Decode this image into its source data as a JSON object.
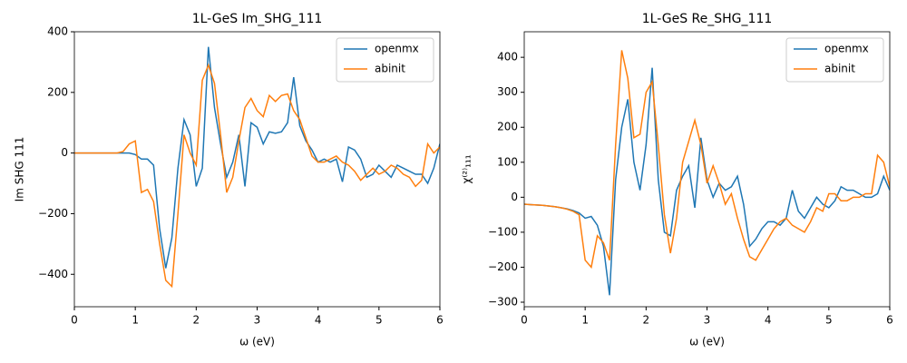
{
  "chart_data": [
    {
      "type": "line",
      "title": "1L-GeS Im_SHG_111",
      "xlabel": "ω (eV)",
      "ylabel": "Im SHG 111",
      "x": [
        0,
        0.1,
        0.2,
        0.3,
        0.4,
        0.5,
        0.6,
        0.7,
        0.8,
        0.9,
        1,
        1.1,
        1.2,
        1.3,
        1.4,
        1.5,
        1.6,
        1.7,
        1.8,
        1.9,
        2,
        2.1,
        2.2,
        2.3,
        2.4,
        2.5,
        2.6,
        2.7,
        2.8,
        2.9,
        3,
        3.1,
        3.2,
        3.3,
        3.4,
        3.5,
        3.6,
        3.7,
        3.8,
        3.9,
        4,
        4.1,
        4.2,
        4.3,
        4.4,
        4.5,
        4.6,
        4.7,
        4.8,
        4.9,
        5,
        5.1,
        5.2,
        5.3,
        5.4,
        5.5,
        5.6,
        5.7,
        5.8,
        5.9,
        6
      ],
      "series": [
        {
          "name": "openmx",
          "color": "#1f77b4",
          "values": [
            0,
            0,
            0,
            0,
            0,
            0,
            0,
            0,
            0,
            0,
            -5,
            -20,
            -20,
            -40,
            -250,
            -380,
            -280,
            -50,
            110,
            60,
            -110,
            -50,
            350,
            150,
            30,
            -80,
            -30,
            60,
            -110,
            100,
            85,
            30,
            70,
            65,
            70,
            100,
            250,
            90,
            40,
            10,
            -30,
            -20,
            -30,
            -20,
            -95,
            20,
            10,
            -20,
            -80,
            -70,
            -40,
            -60,
            -80,
            -40,
            -50,
            -60,
            -70,
            -70,
            -100,
            -50,
            30
          ]
        },
        {
          "name": "abinit",
          "color": "#ff7f0e",
          "values": [
            0,
            0,
            0,
            0,
            0,
            0,
            0,
            0,
            5,
            30,
            40,
            -130,
            -120,
            -160,
            -300,
            -420,
            -440,
            -200,
            60,
            0,
            -40,
            240,
            290,
            230,
            60,
            -130,
            -80,
            40,
            150,
            180,
            140,
            120,
            190,
            170,
            190,
            195,
            140,
            110,
            50,
            -10,
            -30,
            -30,
            -20,
            -10,
            -30,
            -40,
            -60,
            -90,
            -70,
            -50,
            -70,
            -60,
            -40,
            -50,
            -70,
            -80,
            -110,
            -90,
            30,
            0,
            20
          ]
        }
      ],
      "xlim": [
        0,
        6
      ],
      "xticks": [
        0,
        1,
        2,
        3,
        4,
        5,
        6
      ],
      "ylim": [
        -507,
        400
      ],
      "yticks": [
        {
          "value": -400,
          "label": "−400"
        },
        {
          "value": -200,
          "label": "−200"
        },
        0,
        200,
        400
      ],
      "legend": "upper right"
    },
    {
      "type": "line",
      "title": "1L-GeS Re_SHG_111",
      "xlabel": "ω (eV)",
      "ylabel": "χ⁽²⁾₁₁₁",
      "x": [
        0,
        0.1,
        0.2,
        0.3,
        0.4,
        0.5,
        0.6,
        0.7,
        0.8,
        0.9,
        1,
        1.1,
        1.2,
        1.3,
        1.4,
        1.5,
        1.6,
        1.7,
        1.8,
        1.9,
        2,
        2.1,
        2.2,
        2.3,
        2.4,
        2.5,
        2.6,
        2.7,
        2.8,
        2.9,
        3,
        3.1,
        3.2,
        3.3,
        3.4,
        3.5,
        3.6,
        3.7,
        3.8,
        3.9,
        4,
        4.1,
        4.2,
        4.3,
        4.4,
        4.5,
        4.6,
        4.7,
        4.8,
        4.9,
        5,
        5.1,
        5.2,
        5.3,
        5.4,
        5.5,
        5.6,
        5.7,
        5.8,
        5.9,
        6
      ],
      "series": [
        {
          "name": "openmx",
          "color": "#1f77b4",
          "values": [
            -20,
            -21,
            -22,
            -23,
            -25,
            -27,
            -30,
            -33,
            -38,
            -45,
            -60,
            -55,
            -80,
            -140,
            -280,
            50,
            200,
            280,
            100,
            20,
            150,
            370,
            50,
            -100,
            -110,
            20,
            60,
            90,
            -30,
            170,
            50,
            0,
            40,
            20,
            30,
            60,
            -20,
            -140,
            -120,
            -90,
            -70,
            -70,
            -80,
            -60,
            20,
            -40,
            -60,
            -30,
            0,
            -20,
            -30,
            -10,
            30,
            20,
            20,
            10,
            0,
            0,
            10,
            60,
            20
          ]
        },
        {
          "name": "abinit",
          "color": "#ff7f0e",
          "values": [
            -20,
            -21,
            -22,
            -23,
            -25,
            -27,
            -30,
            -34,
            -40,
            -50,
            -180,
            -200,
            -110,
            -130,
            -180,
            150,
            420,
            340,
            170,
            180,
            300,
            330,
            150,
            -50,
            -160,
            -60,
            100,
            160,
            220,
            150,
            40,
            90,
            40,
            -20,
            10,
            -60,
            -120,
            -170,
            -180,
            -150,
            -120,
            -90,
            -70,
            -60,
            -80,
            -90,
            -100,
            -70,
            -30,
            -40,
            10,
            10,
            -10,
            -10,
            0,
            0,
            10,
            10,
            120,
            100,
            30
          ]
        }
      ],
      "xlim": [
        0,
        6
      ],
      "xticks": [
        0,
        1,
        2,
        3,
        4,
        5,
        6
      ],
      "ylim": [
        -313,
        473
      ],
      "yticks": [
        {
          "value": -300,
          "label": "−300"
        },
        {
          "value": -200,
          "label": "−200"
        },
        {
          "value": -100,
          "label": "−100"
        },
        0,
        100,
        200,
        300,
        400
      ],
      "legend": "upper right"
    }
  ]
}
